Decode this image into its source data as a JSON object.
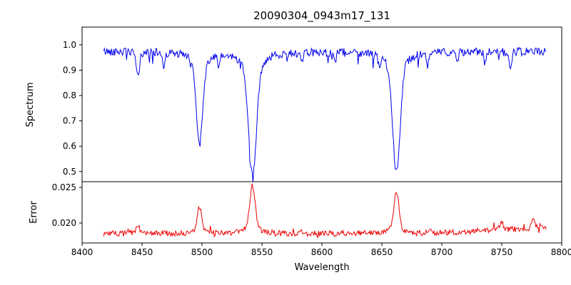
{
  "figure": {
    "title": "20090304_0943m17_131",
    "xlabel": "Wavelength",
    "background": "#ffffff",
    "frame_color": "#000000"
  },
  "chart_data": [
    {
      "type": "line",
      "name": "spectrum",
      "ylabel": "Spectrum",
      "color": "#0000ee",
      "grid": false,
      "legend": null,
      "xlim": [
        8400,
        8800
      ],
      "ylim": [
        0.46,
        1.07
      ],
      "x_ticks": {
        "values": [
          8400,
          8450,
          8500,
          8550,
          8600,
          8650,
          8700,
          8750,
          8800
        ],
        "labels": [
          "8400",
          "8450",
          "8500",
          "8550",
          "8600",
          "8650",
          "8700",
          "8750",
          "8800"
        ]
      },
      "y_ticks": {
        "values": [
          0.5,
          0.6,
          0.7,
          0.8,
          0.9,
          1.0
        ],
        "labels": [
          "0.5",
          "0.6",
          "0.7",
          "0.8",
          "0.9",
          "1.0"
        ]
      },
      "data_x_range": [
        8418,
        8787
      ],
      "continuum": 0.975,
      "noise_amplitude": 0.016,
      "absorption_lines": [
        {
          "center": 8446.5,
          "depth": 0.1,
          "width": 1.2
        },
        {
          "center": 8498.0,
          "depth": 0.36,
          "width": 2.6
        },
        {
          "center": 8542.1,
          "depth": 0.49,
          "width": 3.2
        },
        {
          "center": 8662.1,
          "depth": 0.47,
          "width": 3.0
        }
      ],
      "minor_lines": [
        {
          "center": 8468.0,
          "depth": 0.06,
          "width": 0.8
        },
        {
          "center": 8514.0,
          "depth": 0.05,
          "width": 0.8
        },
        {
          "center": 8583.0,
          "depth": 0.05,
          "width": 0.8
        },
        {
          "center": 8611.0,
          "depth": 0.04,
          "width": 0.8
        },
        {
          "center": 8648.0,
          "depth": 0.05,
          "width": 0.8
        },
        {
          "center": 8688.0,
          "depth": 0.06,
          "width": 0.8
        },
        {
          "center": 8713.0,
          "depth": 0.04,
          "width": 0.8
        },
        {
          "center": 8736.0,
          "depth": 0.05,
          "width": 0.8
        },
        {
          "center": 8757.0,
          "depth": 0.08,
          "width": 0.9
        }
      ]
    },
    {
      "type": "line",
      "name": "error",
      "ylabel": "Error",
      "color": "#ee0000",
      "grid": false,
      "legend": null,
      "xlim": [
        8400,
        8800
      ],
      "ylim": [
        0.0172,
        0.0258
      ],
      "y_ticks": {
        "values": [
          0.02,
          0.025
        ],
        "labels": [
          "0.020",
          "0.025"
        ]
      },
      "data_x_range": [
        8418,
        8787
      ],
      "baseline": 0.0185,
      "noise_amplitude": 0.0004,
      "trend": {
        "start": 8680,
        "rise": 0.0008
      },
      "peaks": [
        {
          "center": 8446.5,
          "height": 0.0012,
          "width": 1.2
        },
        {
          "center": 8498.0,
          "height": 0.0038,
          "width": 1.8
        },
        {
          "center": 8542.1,
          "height": 0.0068,
          "width": 2.2
        },
        {
          "center": 8662.1,
          "height": 0.006,
          "width": 2.0
        },
        {
          "center": 8690.0,
          "height": 0.0008,
          "width": 1.0
        },
        {
          "center": 8750.0,
          "height": 0.0012,
          "width": 1.2
        },
        {
          "center": 8776.0,
          "height": 0.0012,
          "width": 1.2
        }
      ]
    }
  ]
}
